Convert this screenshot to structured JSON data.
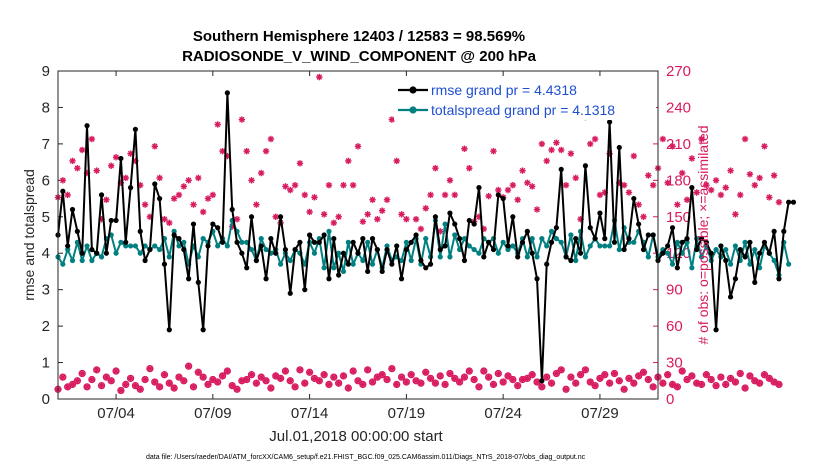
{
  "chart_data": {
    "type": "line",
    "title": "Southern Hemisphere 12403 / 12583 = 98.569%",
    "subtitle": "RADIOSONDE_V_WIND_COMPONENT @ 200 hPa",
    "xlabel": "Jul.01,2018 00:00:00 start",
    "ylabel": "rmse and totalspread",
    "ylabel_right": "# of obs: o=possible; ×=assimilated",
    "footnote": "data file: /Users/raeder/DAI/ATM_forcXX/CAM6_setup/f.e21.FHIST_BGC.f09_025.CAM6assim.011/Diags_NTrS_2018-07/obs_diag_output.nc",
    "xlim": [
      1.0,
      32.0
    ],
    "ylim": [
      0,
      9
    ],
    "ylim_right": [
      0,
      270
    ],
    "x_ticks": [
      4,
      9,
      14,
      19,
      24,
      29
    ],
    "x_tick_labels": [
      "07/04",
      "07/09",
      "07/14",
      "07/19",
      "07/24",
      "07/29"
    ],
    "y_ticks": [
      0,
      1,
      2,
      3,
      4,
      5,
      6,
      7,
      8,
      9
    ],
    "y_ticks_right": [
      0,
      30,
      60,
      90,
      120,
      150,
      180,
      210,
      240,
      270
    ],
    "legend": [
      {
        "label": "rmse grand pr = 4.4318",
        "color": "#000000"
      },
      {
        "label": "totalspread grand pr = 4.1318",
        "color": "#008080"
      }
    ],
    "colors": {
      "rmse": "#000000",
      "spread": "#008080",
      "obs": "#d81b60",
      "legend_text": "#1f4fd1"
    },
    "x_start": 1.0,
    "x_step": 0.25,
    "series": [
      {
        "name": "rmse",
        "values": [
          4.5,
          5.7,
          4.2,
          5.2,
          4.6,
          4.0,
          7.5,
          4.1,
          4.0,
          5.6,
          4.0,
          4.9,
          4.9,
          6.6,
          4.3,
          5.8,
          7.4,
          4.6,
          3.8,
          4.1,
          5.9,
          5.5,
          3.7,
          1.9,
          4.5,
          4.4,
          4.1,
          3.3,
          4.8,
          3.2,
          1.9,
          4.2,
          4.8,
          4.7,
          4.3,
          8.4,
          5.2,
          4.3,
          4.0,
          3.6,
          5.0,
          3.8,
          4.2,
          3.3,
          4.4,
          4.0,
          5.0,
          4.1,
          2.9,
          4.1,
          4.3,
          3.0,
          4.5,
          4.3,
          4.3,
          4.5,
          3.3,
          4.4,
          3.4,
          4.0,
          3.7,
          4.3,
          4.0,
          4.4,
          3.5,
          4.4,
          4.1,
          3.5,
          4.1,
          3.7,
          4.2,
          3.3,
          4.1,
          4.3,
          4.5,
          3.8,
          3.6,
          3.7,
          5.0,
          4.1,
          4.2,
          5.1,
          4.8,
          4.4,
          3.8,
          4.9,
          4.8,
          5.8,
          3.9,
          4.3,
          4.1,
          5.6,
          5.5,
          4.2,
          5.0,
          3.9,
          4.3,
          4.6,
          4.0,
          3.3,
          0.5,
          3.7,
          4.3,
          4.7,
          6.3,
          3.9,
          3.8,
          4.4,
          4.0,
          6.4,
          4.7,
          4.4,
          5.1,
          4.4,
          7.6,
          4.3,
          6.9,
          4.1,
          4.4,
          5.5,
          4.8,
          4.1,
          4.5,
          4.5,
          3.8,
          4.0,
          4.2,
          4.7,
          3.6,
          4.3,
          4.4,
          5.8,
          4.1,
          4.4,
          4.3,
          4.0,
          1.9,
          4.2,
          3.8,
          2.8,
          3.3,
          4.1,
          3.9,
          4.3,
          3.2,
          4.0,
          4.3,
          4.0,
          4.6,
          3.3,
          4.6,
          5.4,
          5.4
        ]
      },
      {
        "name": "totalspread",
        "values": [
          3.9,
          3.7,
          4.1,
          3.8,
          4.3,
          3.8,
          4.2,
          3.8,
          4.0,
          3.9,
          4.4,
          4.5,
          4.0,
          4.3,
          4.2,
          4.2,
          4.2,
          4.0,
          4.2,
          4.1,
          4.2,
          4.1,
          4.4,
          3.9,
          4.6,
          4.2,
          4.3,
          3.7,
          4.2,
          3.9,
          4.4,
          4.3,
          4.6,
          4.2,
          4.4,
          4.2,
          4.9,
          4.6,
          4.3,
          4.3,
          4.1,
          3.8,
          4.4,
          4.1,
          4.0,
          4.1,
          3.7,
          4.0,
          3.8,
          4.1,
          4.0,
          3.7,
          4.3,
          4.0,
          4.4,
          3.6,
          4.6,
          3.6,
          4.0,
          3.5,
          4.3,
          3.7,
          4.0,
          3.8,
          4.3,
          3.7,
          4.1,
          3.6,
          4.2,
          3.8,
          3.9,
          3.8,
          4.3,
          3.8,
          4.4,
          3.7,
          4.4,
          3.9,
          4.9,
          3.9,
          4.8,
          3.9,
          4.5,
          4.1,
          4.4,
          4.2,
          4.1,
          4.0,
          4.4,
          4.3,
          4.4,
          4.0,
          4.3,
          4.1,
          4.2,
          4.0,
          4.4,
          3.9,
          4.4,
          3.9,
          4.4,
          4.2,
          4.6,
          4.4,
          4.3,
          3.9,
          4.5,
          3.8,
          4.6,
          3.9,
          4.2,
          4.4,
          4.2,
          4.2,
          4.2,
          4.9,
          4.1,
          4.7,
          4.3,
          4.3,
          4.6,
          4.3,
          3.9,
          4.5,
          3.9,
          4.1,
          4.0,
          3.7,
          4.3,
          4.0,
          4.3,
          3.6,
          4.4,
          3.9,
          4.2,
          3.8,
          4.1,
          3.9,
          4.1,
          3.7,
          4.2,
          3.8,
          4.3,
          3.7,
          4.1,
          3.6,
          4.2,
          4.0,
          3.8,
          3.4,
          4.3,
          3.7
        ]
      },
      {
        "name": "obs possible",
        "values": [
          8,
          18,
          10,
          12,
          15,
          21,
          10,
          16,
          24,
          11,
          18,
          15,
          23,
          7,
          12,
          17,
          11,
          8,
          16,
          25,
          14,
          10,
          20,
          13,
          9,
          18,
          15,
          27,
          10,
          22,
          18,
          12,
          16,
          14,
          19,
          23,
          11,
          8,
          15,
          16,
          20,
          13,
          18,
          15,
          9,
          19,
          17,
          23,
          15,
          10,
          24,
          13,
          22,
          17,
          15,
          20,
          12,
          18,
          13,
          19,
          9,
          23,
          15,
          12,
          24,
          14,
          18,
          20,
          16,
          25,
          12,
          18,
          14,
          20,
          15,
          13,
          22,
          17,
          13,
          19,
          12,
          21,
          17,
          14,
          18,
          23,
          16,
          10,
          23,
          18,
          12,
          21,
          14,
          19,
          16,
          11,
          16,
          17,
          20,
          14,
          10,
          18,
          13,
          21,
          24,
          8,
          18,
          13,
          20,
          24,
          14,
          11,
          17,
          20,
          13,
          21,
          15,
          8,
          17,
          13,
          19,
          22,
          16,
          10,
          18,
          13,
          20,
          12,
          10,
          23,
          16,
          19,
          13,
          12,
          20,
          16,
          11,
          18,
          12,
          17,
          14,
          21,
          9,
          19,
          15,
          13,
          20,
          17,
          14,
          12
        ]
      },
      {
        "name": "obs assimilated",
        "values": [
          166,
          180,
          168,
          196,
          190,
          205,
          186,
          214,
          188,
          148,
          164,
          192,
          199,
          178,
          182,
          202,
          196,
          176,
          160,
          150,
          208,
          182,
          148,
          145,
          165,
          168,
          175,
          180,
          160,
          182,
          154,
          165,
          168,
          226,
          204,
          200,
          142,
          148,
          230,
          204,
          180,
          160,
          186,
          204,
          214,
          150,
          145,
          175,
          172,
          176,
          194,
          168,
          154,
          166,
          265,
          152,
          176,
          145,
          150,
          176,
          196,
          176,
          208,
          146,
          152,
          164,
          148,
          155,
          164,
          230,
          196,
          152,
          148,
          240,
          148,
          140,
          157,
          168,
          190,
          138,
          168,
          180,
          168,
          242,
          206,
          190,
          146,
          150,
          140,
          167,
          204,
          172,
          166,
          172,
          176,
          164,
          188,
          178,
          175,
          156,
          210,
          196,
          205,
          211,
          205,
          176,
          202,
          182,
          148,
          232,
          210,
          214,
          168,
          170,
          202,
          245,
          178,
          176,
          170,
          200,
          160,
          150,
          184,
          176,
          190,
          214,
          178,
          208,
          160,
          186,
          164,
          198,
          170,
          214,
          176,
          172,
          180,
          168,
          174,
          188,
          152,
          168,
          214,
          185,
          176,
          182,
          208,
          166,
          184,
          162
        ]
      }
    ]
  }
}
